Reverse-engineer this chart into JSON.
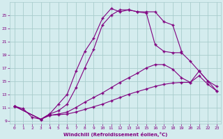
{
  "xlabel": "Windchill (Refroidissement éolien,°C)",
  "bg_color": "#d4ecee",
  "grid_color": "#a8cccc",
  "line_color": "#800080",
  "xlim": [
    -0.5,
    23.5
  ],
  "ylim": [
    8.5,
    27.0
  ],
  "xticks": [
    0,
    1,
    2,
    3,
    4,
    5,
    6,
    7,
    8,
    9,
    10,
    11,
    12,
    13,
    14,
    15,
    16,
    17,
    18,
    19,
    20,
    21,
    22,
    23
  ],
  "yticks": [
    9,
    11,
    13,
    15,
    17,
    19,
    21,
    23,
    25
  ],
  "curve1_x": [
    0,
    1,
    2,
    3,
    4,
    5,
    6,
    7,
    8,
    9,
    10,
    11,
    12,
    13,
    14,
    15,
    16,
    17,
    18,
    19
  ],
  "curve1_y": [
    11.2,
    10.8,
    9.5,
    9.2,
    10.0,
    11.5,
    13.0,
    16.5,
    19.5,
    21.5,
    24.5,
    26.0,
    25.5,
    25.8,
    25.5,
    25.5,
    25.5,
    24.0,
    23.5,
    19.5
  ],
  "curve2_x": [
    0,
    3,
    4,
    5,
    6,
    7,
    8,
    9,
    10,
    11,
    12,
    13,
    14,
    15,
    16,
    17,
    18,
    19,
    20,
    21,
    22,
    23
  ],
  "curve2_y": [
    11.2,
    9.2,
    10.0,
    10.5,
    11.5,
    14.0,
    17.0,
    19.8,
    23.5,
    25.0,
    25.8,
    25.8,
    25.5,
    25.3,
    20.5,
    19.5,
    19.3,
    19.3,
    18.0,
    16.5,
    15.0,
    13.5
  ],
  "curve3_x": [
    0,
    3,
    4,
    5,
    6,
    7,
    8,
    9,
    10,
    11,
    12,
    13,
    14,
    15,
    16,
    17,
    18,
    19,
    20,
    21,
    22,
    23
  ],
  "curve3_y": [
    11.2,
    9.2,
    9.8,
    10.0,
    10.3,
    11.0,
    11.8,
    12.5,
    13.2,
    14.0,
    14.8,
    15.5,
    16.2,
    17.0,
    17.5,
    17.5,
    16.8,
    15.5,
    14.8,
    16.5,
    15.0,
    14.2
  ],
  "curve4_x": [
    0,
    3,
    4,
    5,
    6,
    7,
    8,
    9,
    10,
    11,
    12,
    13,
    14,
    15,
    16,
    17,
    18,
    19,
    20,
    21,
    22,
    23
  ],
  "curve4_y": [
    11.2,
    9.2,
    9.8,
    9.9,
    10.0,
    10.3,
    10.7,
    11.1,
    11.5,
    12.0,
    12.5,
    13.0,
    13.4,
    13.8,
    14.2,
    14.5,
    14.7,
    14.8,
    14.8,
    15.8,
    14.5,
    13.5
  ]
}
